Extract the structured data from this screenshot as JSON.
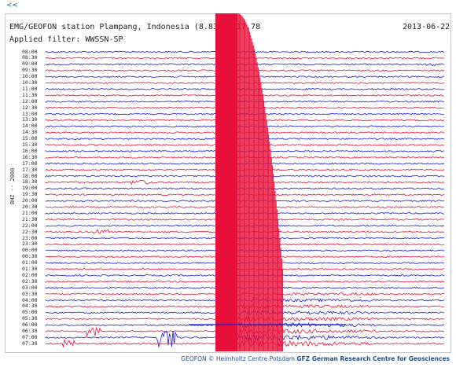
{
  "nav": {
    "back_label": "<<"
  },
  "header": {
    "title": "EMG/GEOFON station Plampang, Indonesia (8.83 S 117.78",
    "date": "2013-06-22",
    "filter": "Applied filter: WWSSN-SP"
  },
  "axis": {
    "channel_label": "BHZ -- 2000"
  },
  "times": [
    "08:00",
    "08:30",
    "09:00",
    "09:30",
    "10:00",
    "10:30",
    "11:00",
    "11:30",
    "12:00",
    "12:30",
    "13:00",
    "13:30",
    "14:00",
    "14:30",
    "15:00",
    "15:30",
    "16:00",
    "16:30",
    "17:00",
    "17:30",
    "18:00",
    "18:30",
    "19:00",
    "19:30",
    "20:00",
    "20:30",
    "21:00",
    "21:30",
    "22:00",
    "22:30",
    "23:00",
    "23:30",
    "00:00",
    "00:30",
    "01:00",
    "01:30",
    "02:00",
    "02:30",
    "03:00",
    "03:30",
    "04:00",
    "04:30",
    "05:00",
    "05:30",
    "06:00",
    "06:30",
    "07:00",
    "07:30"
  ],
  "colors": {
    "blue": "#1a1ad8",
    "red": "#e8103a"
  },
  "footer": {
    "prefix": "GEOFON © Heimholtz Centre Potsdam ",
    "org": "GFZ German Research Centre for Geosciences"
  }
}
